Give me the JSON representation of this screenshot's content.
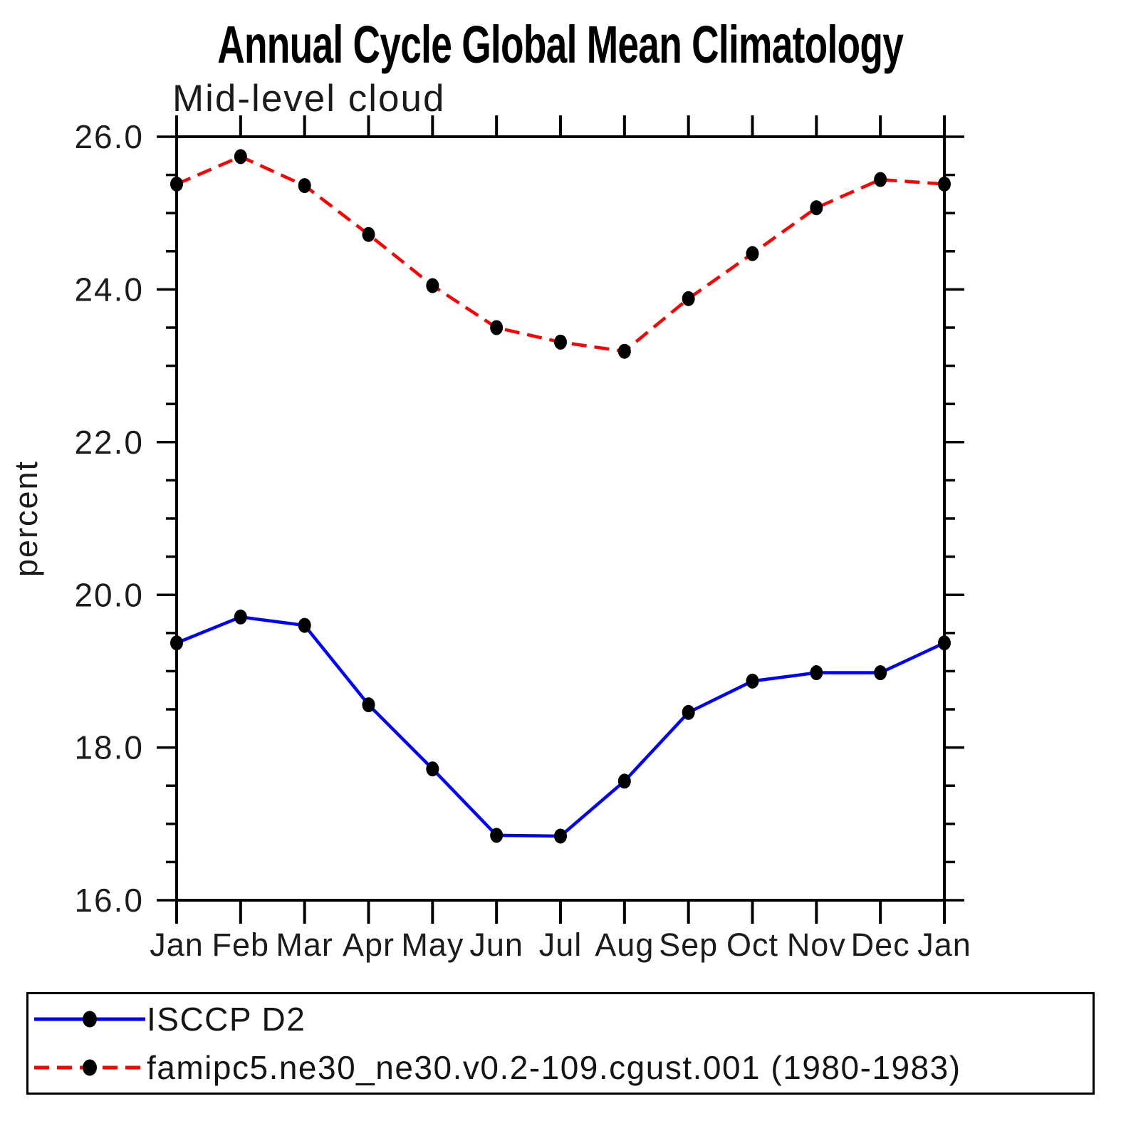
{
  "page": {
    "title": "Annual Cycle Global Mean Climatology",
    "subtitle": "Mid-level cloud"
  },
  "chart_data": {
    "type": "line",
    "title": "Annual Cycle Global Mean Climatology",
    "subtitle": "Mid-level cloud",
    "xlabel": "",
    "ylabel": "percent",
    "categories": [
      "Jan",
      "Feb",
      "Mar",
      "Apr",
      "May",
      "Jun",
      "Jul",
      "Aug",
      "Sep",
      "Oct",
      "Nov",
      "Dec",
      "Jan"
    ],
    "ylim": [
      16.0,
      26.0
    ],
    "ytick_major_interval": 2.0,
    "ytick_minor_interval": 0.5,
    "ytick_labels": [
      "26.0",
      "24.0",
      "22.0",
      "20.0",
      "18.0",
      "16.0"
    ],
    "grid": false,
    "legend_position": "bottom-box",
    "frame_color": "#000000",
    "series": [
      {
        "name": "ISCCP D2",
        "color": "#0000ff",
        "line_style": "solid",
        "marker": "filled-circle",
        "marker_color": "#000000",
        "values": [
          19.37,
          19.71,
          19.6,
          18.56,
          17.72,
          16.85,
          16.84,
          17.56,
          18.46,
          18.87,
          18.98,
          18.98,
          19.37
        ]
      },
      {
        "name": "famipc5.ne30_ne30.v0.2-109.cgust.001 (1980-1983)",
        "color": "#ff0000",
        "line_style": "dashed",
        "marker": "filled-circle",
        "marker_color": "#000000",
        "values": [
          25.38,
          25.74,
          25.36,
          24.72,
          24.05,
          23.5,
          23.31,
          23.19,
          23.88,
          24.47,
          25.07,
          25.44,
          25.38
        ]
      }
    ]
  }
}
